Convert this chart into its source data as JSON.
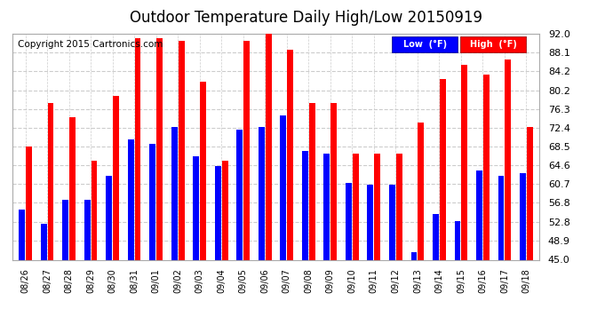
{
  "title": "Outdoor Temperature Daily High/Low 20150919",
  "copyright": "Copyright 2015 Cartronics.com",
  "legend_low": "Low  (°F)",
  "legend_high": "High  (°F)",
  "categories": [
    "08/26",
    "08/27",
    "08/28",
    "08/29",
    "08/30",
    "08/31",
    "09/01",
    "09/02",
    "09/03",
    "09/04",
    "09/05",
    "09/06",
    "09/07",
    "09/08",
    "09/09",
    "09/10",
    "09/11",
    "09/12",
    "09/13",
    "09/14",
    "09/15",
    "09/16",
    "09/17",
    "09/18"
  ],
  "high_values": [
    68.5,
    77.5,
    74.5,
    65.5,
    79.0,
    91.0,
    91.0,
    90.5,
    82.0,
    65.5,
    90.5,
    92.0,
    88.5,
    77.5,
    77.5,
    67.0,
    67.0,
    67.0,
    73.5,
    82.5,
    85.5,
    83.5,
    86.5,
    72.5
  ],
  "low_values": [
    55.5,
    52.5,
    57.5,
    57.5,
    62.5,
    70.0,
    69.0,
    72.5,
    66.5,
    64.5,
    72.0,
    72.5,
    75.0,
    67.5,
    67.0,
    61.0,
    60.5,
    60.5,
    46.5,
    54.5,
    53.0,
    63.5,
    62.5,
    63.0
  ],
  "ylim": [
    45.0,
    92.0
  ],
  "yticks": [
    45.0,
    48.9,
    52.8,
    56.8,
    60.7,
    64.6,
    68.5,
    72.4,
    76.3,
    80.2,
    84.2,
    88.1,
    92.0
  ],
  "bg_color": "#ffffff",
  "plot_bg_color": "#ffffff",
  "grid_color": "#cccccc",
  "bar_color_low": "#0000ff",
  "bar_color_high": "#ff0000",
  "title_fontsize": 12,
  "copyright_fontsize": 7.5,
  "bar_width": 0.28,
  "bar_gap": 0.04
}
